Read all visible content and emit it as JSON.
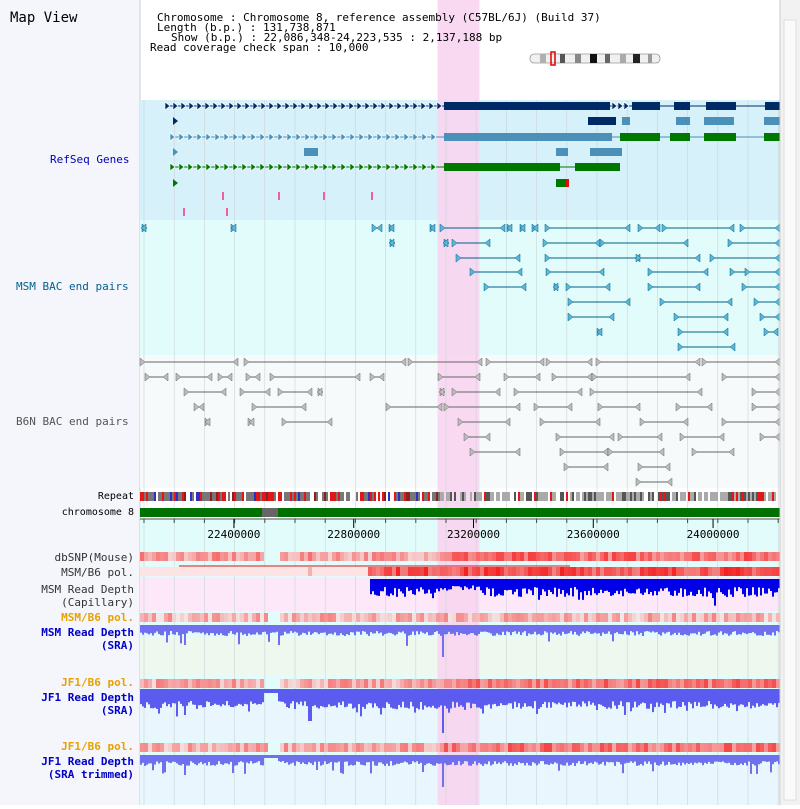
{
  "title": "Map View",
  "info": {
    "chromosome": "Chromosome     : Chromosome 8, reference assembly (C57BL/6J) (Build 37)",
    "length": "Length (b.p.) : 131,738,871",
    "show": "Show (b.p.) : 22,086,348-24,223,535 : 2,137,188 bp",
    "coverage": "Read coverage check span : 10,000"
  },
  "tracks": {
    "refseq": "RefSeq Genes",
    "msm_bac": "MSM BAC end pairs",
    "b6n_bac": "B6N BAC end pairs",
    "repeat": "Repeat",
    "chromosome": "chromosome 8",
    "dbsnp": "dbSNP(Mouse)",
    "msm_b6_pol_1": "MSM/B6 pol.",
    "msm_depth_cap_1": "MSM Read Depth",
    "msm_depth_cap_2": "(Capillary)",
    "msm_b6_pol_2": "MSM/B6 pol.",
    "msm_depth_sra_1": "MSM Read Depth",
    "msm_depth_sra_2": "(SRA)",
    "jf1_b6_pol_1": "JF1/B6 pol.",
    "jf1_depth_sra_1": "JF1 Read Depth",
    "jf1_depth_sra_2": "(SRA)",
    "jf1_b6_pol_2": "JF1/B6 pol.",
    "jf1_depth_trim_1": "JF1 Read Depth",
    "jf1_depth_trim_2": "(SRA trimmed)"
  },
  "ruler": {
    "ticks": [
      "22400000",
      "22800000",
      "23200000",
      "23600000",
      "24000000"
    ],
    "tick_values": [
      22400000,
      22800000,
      23200000,
      23600000,
      24000000
    ],
    "range": [
      22086348,
      24223535
    ]
  },
  "highlight": {
    "start": 23080000,
    "end": 23220000
  },
  "colors": {
    "refseq_bg": "#d7f1fb",
    "msm_bac_bg": "#e2fcfb",
    "b6n_bac_bg": "#f7fafa",
    "highlight": "#f8d5f0",
    "refseq_label": "#0000b4",
    "msm_label": "#005f8f",
    "b6n_label": "#555555",
    "pol_label_orange": "#e8a100",
    "depth_label_blue": "#0000c8",
    "gene_navy": "#002a66",
    "gene_blue": "#4a90b8",
    "gene_green": "#007800",
    "chromosome_bar": "#007000"
  }
}
